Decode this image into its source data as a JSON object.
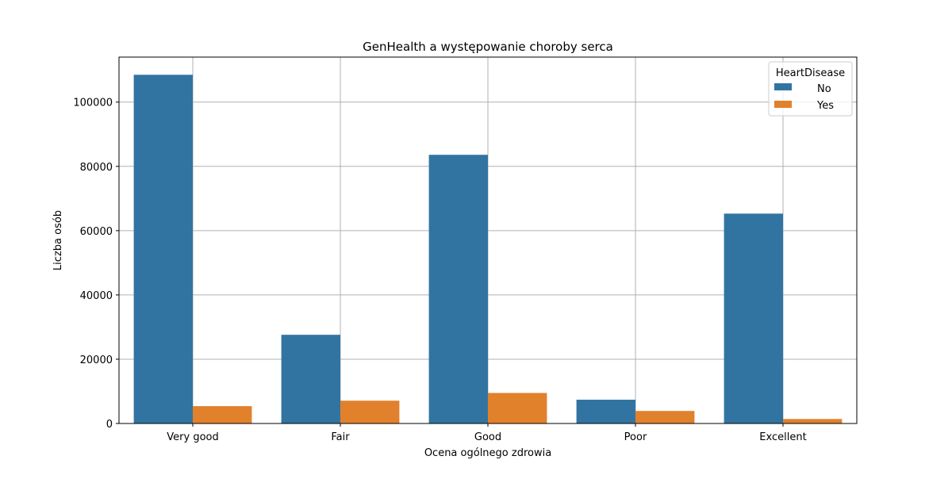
{
  "chart_data": {
    "type": "bar",
    "title": "GenHealth a występowanie choroby serca",
    "xlabel": "Ocena ogólnego zdrowia",
    "ylabel": "Liczba osób",
    "categories": [
      "Very good",
      "Fair",
      "Good",
      "Poor",
      "Excellent"
    ],
    "series": [
      {
        "name": "No",
        "color": "#3274a1",
        "values": [
          108500,
          27600,
          83600,
          7400,
          65300
        ]
      },
      {
        "name": "Yes",
        "color": "#e1812c",
        "values": [
          5400,
          7100,
          9500,
          3900,
          1400
        ]
      }
    ],
    "ylim": [
      0,
      114000
    ],
    "yticks": [
      0,
      20000,
      40000,
      60000,
      80000,
      100000
    ],
    "grid": true,
    "legend": {
      "title": "HeartDisease",
      "placement": "top-right"
    }
  }
}
